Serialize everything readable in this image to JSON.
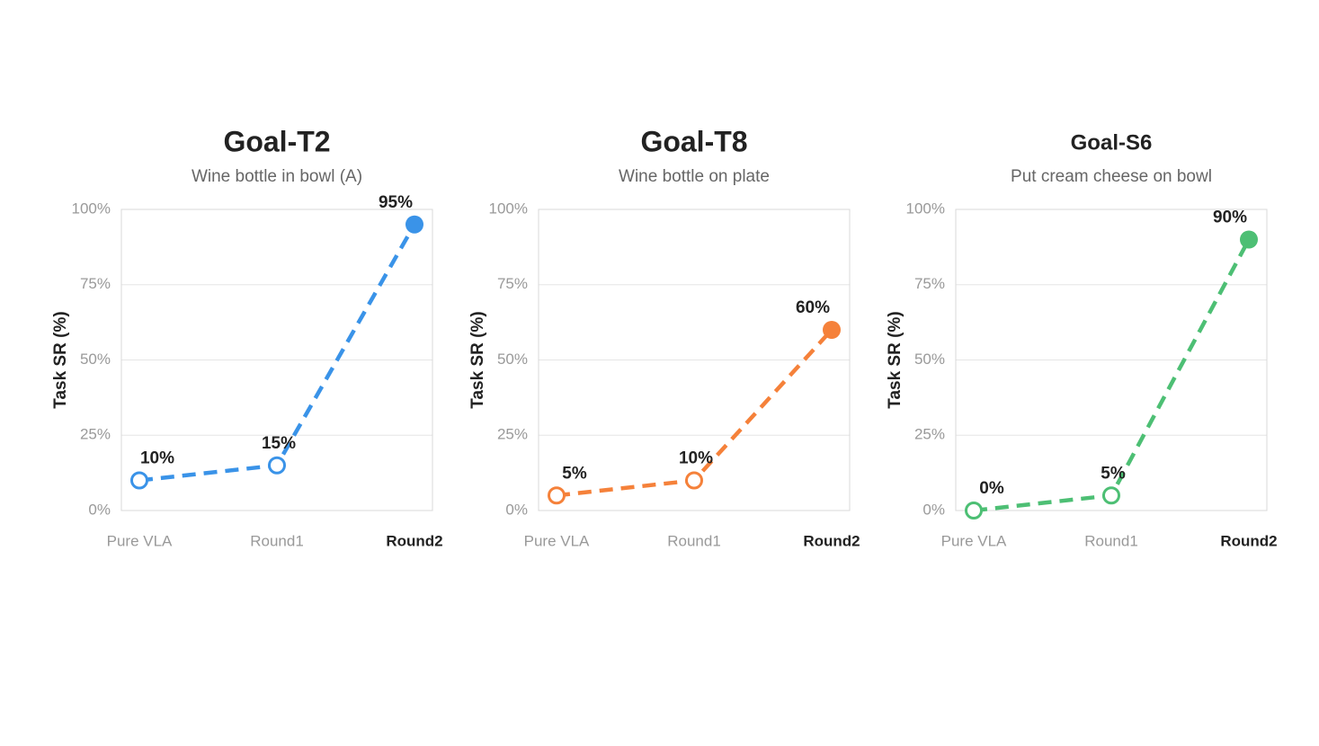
{
  "chart_data": [
    {
      "type": "line",
      "title": "Goal-T2",
      "subtitle": "Wine bottle in bowl (A)",
      "y_label": "Task SR (%)",
      "categories": [
        "Pure VLA",
        "Round1",
        "Round2"
      ],
      "values": [
        10,
        15,
        95
      ],
      "value_labels": [
        "10%",
        "15%",
        "95%"
      ],
      "color": "#3a93e8",
      "ylim": [
        0,
        100
      ],
      "yticks": [
        {
          "value": 0,
          "label": "0%"
        },
        {
          "value": 25,
          "label": "25%"
        },
        {
          "value": 50,
          "label": "50%"
        },
        {
          "value": 75,
          "label": "75%"
        },
        {
          "value": 100,
          "label": "100%"
        }
      ],
      "grid": true
    },
    {
      "type": "line",
      "title": "Goal-T8",
      "subtitle": "Wine bottle on plate",
      "y_label": "Task SR (%)",
      "categories": [
        "Pure VLA",
        "Round1",
        "Round2"
      ],
      "values": [
        5,
        10,
        60
      ],
      "value_labels": [
        "5%",
        "10%",
        "60%"
      ],
      "color": "#f5813a",
      "ylim": [
        0,
        100
      ],
      "yticks": [
        {
          "value": 0,
          "label": "0%"
        },
        {
          "value": 25,
          "label": "25%"
        },
        {
          "value": 50,
          "label": "50%"
        },
        {
          "value": 75,
          "label": "75%"
        },
        {
          "value": 100,
          "label": "100%"
        }
      ],
      "grid": true
    },
    {
      "type": "line",
      "title": "Goal-S6",
      "subtitle": "Put cream cheese on bowl",
      "y_label": "Task SR (%)",
      "categories": [
        "Pure VLA",
        "Round1",
        "Round2"
      ],
      "values": [
        0,
        5,
        90
      ],
      "value_labels": [
        "0%",
        "5%",
        "90%"
      ],
      "color": "#4dbf74",
      "ylim": [
        0,
        100
      ],
      "yticks": [
        {
          "value": 0,
          "label": "0%"
        },
        {
          "value": 25,
          "label": "25%"
        },
        {
          "value": 50,
          "label": "50%"
        },
        {
          "value": 75,
          "label": "75%"
        },
        {
          "value": 100,
          "label": "100%"
        }
      ],
      "grid": true
    }
  ]
}
